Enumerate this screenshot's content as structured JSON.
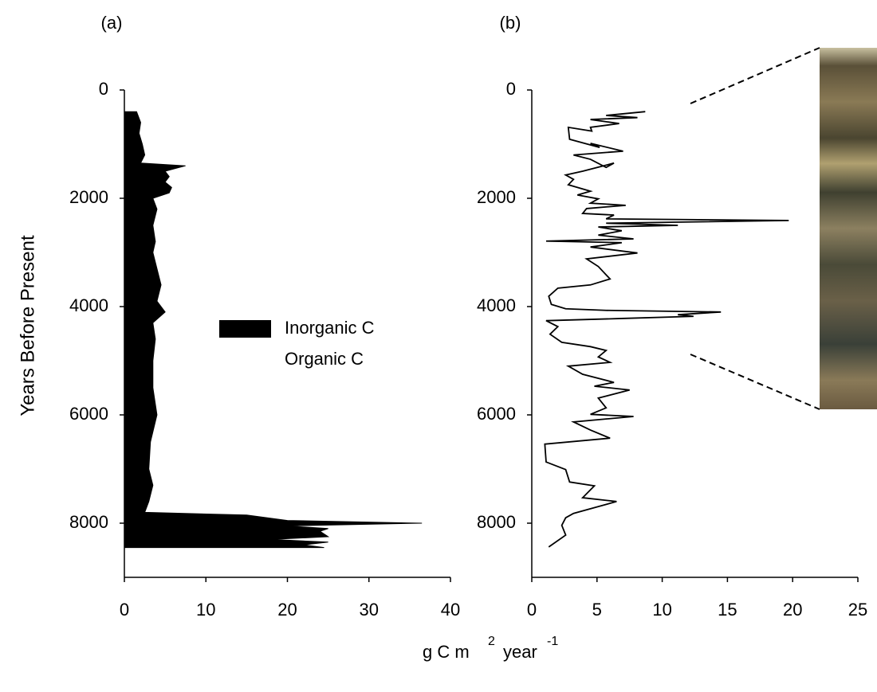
{
  "chart_data": [
    {
      "type": "area",
      "panel_label": "(a)",
      "y_label": "Years Before Present",
      "orientation": "horizontal",
      "xlim": [
        0,
        40
      ],
      "xticks": [
        0,
        10,
        20,
        30,
        40
      ],
      "ylim": [
        0,
        9000
      ],
      "yticks": [
        0,
        2000,
        4000,
        6000,
        8000
      ],
      "y_inverted": true,
      "y": [
        400,
        600,
        800,
        1000,
        1200,
        1350,
        1400,
        1500,
        1600,
        1700,
        1800,
        1900,
        2000,
        2200,
        2500,
        2800,
        3000,
        3300,
        3600,
        3900,
        4100,
        4300,
        4600,
        5000,
        5500,
        6000,
        6500,
        7000,
        7300,
        7600,
        7800,
        7850,
        7950,
        8000,
        8050,
        8100,
        8150,
        8250,
        8300,
        8350,
        8400,
        8450
      ],
      "series": [
        {
          "name": "Inorganic C",
          "color": "#000000",
          "values": [
            1.5,
            2,
            1.8,
            2.2,
            2.5,
            2.0,
            7.5,
            5,
            5.5,
            5,
            5.8,
            5.5,
            3.5,
            4,
            3.5,
            3.8,
            3.5,
            4,
            4.5,
            4,
            5,
            3.5,
            3.8,
            3.5,
            3.5,
            4,
            3.2,
            3,
            3.5,
            3,
            2.5,
            15,
            20,
            36.5,
            20,
            25,
            24,
            25,
            18,
            25,
            22,
            24.5
          ]
        },
        {
          "name": "Organic C",
          "color": "#ffffff",
          "values": [
            null,
            null,
            null,
            null,
            null,
            null,
            null,
            null,
            null,
            null,
            null,
            null,
            null,
            null,
            null,
            null,
            null,
            null,
            null,
            null,
            null,
            null,
            null,
            null,
            null,
            null,
            null,
            null,
            null,
            null,
            null,
            null,
            null,
            null,
            null,
            null,
            null,
            null,
            null,
            null,
            null,
            null
          ]
        }
      ],
      "legend": "center"
    },
    {
      "type": "line",
      "panel_label": "(b)",
      "orientation": "horizontal",
      "xlim": [
        0,
        25
      ],
      "xticks": [
        0,
        5,
        10,
        15,
        20,
        25
      ],
      "ylim": [
        0,
        9000
      ],
      "yticks": [
        0,
        2000,
        4000,
        6000,
        8000
      ],
      "y_inverted": true,
      "y": [
        400,
        470,
        510,
        545,
        620,
        690,
        760,
        690,
        910,
        1060,
        985,
        1130,
        1200,
        1280,
        1430,
        1350,
        1500,
        1570,
        1650,
        1750,
        1870,
        1940,
        2010,
        2090,
        2130,
        2190,
        2280,
        2310,
        2380,
        2410,
        2460,
        2500,
        2530,
        2600,
        2680,
        2750,
        2790,
        2820,
        2900,
        3010,
        3120,
        3260,
        3490,
        3600,
        3660,
        3810,
        3960,
        4040,
        4070,
        4100,
        4150,
        4180,
        4220,
        4260,
        4370,
        4510,
        4660,
        4740,
        4810,
        4930,
        5030,
        5100,
        5250,
        5400,
        5470,
        5540,
        5690,
        5870,
        5990,
        6030,
        6130,
        6280,
        6430,
        6540,
        6870,
        7010,
        7240,
        7310,
        7530,
        7600,
        7820,
        7900,
        8040,
        8220,
        8440
      ],
      "series": [
        {
          "color": "#000000",
          "values": [
            8.7,
            5.7,
            8.1,
            4.5,
            6.7,
            4.5,
            4.6,
            2.8,
            2.9,
            5.2,
            4.5,
            7.0,
            3.2,
            4.5,
            5.7,
            6.3,
            3.9,
            2.6,
            3.2,
            2.8,
            4.5,
            3.5,
            5.1,
            4.5,
            7.2,
            4.2,
            3.9,
            6.3,
            5.7,
            19.7,
            5.7,
            11.2,
            5.1,
            6.9,
            5.1,
            7.8,
            1.1,
            6.9,
            4.5,
            8.1,
            4.2,
            5.1,
            6.0,
            4.5,
            2.0,
            1.3,
            1.5,
            2.6,
            5.7,
            14.5,
            11.2,
            12.4,
            6.9,
            1.1,
            2.0,
            1.4,
            2.3,
            4.5,
            5.7,
            5.1,
            6.0,
            2.8,
            3.9,
            6.3,
            4.8,
            7.5,
            5.1,
            5.7,
            4.5,
            7.8,
            3.2,
            4.5,
            6.0,
            1.0,
            1.1,
            2.6,
            2.9,
            4.8,
            3.9,
            6.5,
            3.2,
            2.6,
            2.3,
            2.6,
            1.3
          ]
        }
      ]
    }
  ],
  "shared_x_label": {
    "base": "g C m",
    "exp1": "2",
    "unit": "year",
    "exp2": "-1"
  }
}
